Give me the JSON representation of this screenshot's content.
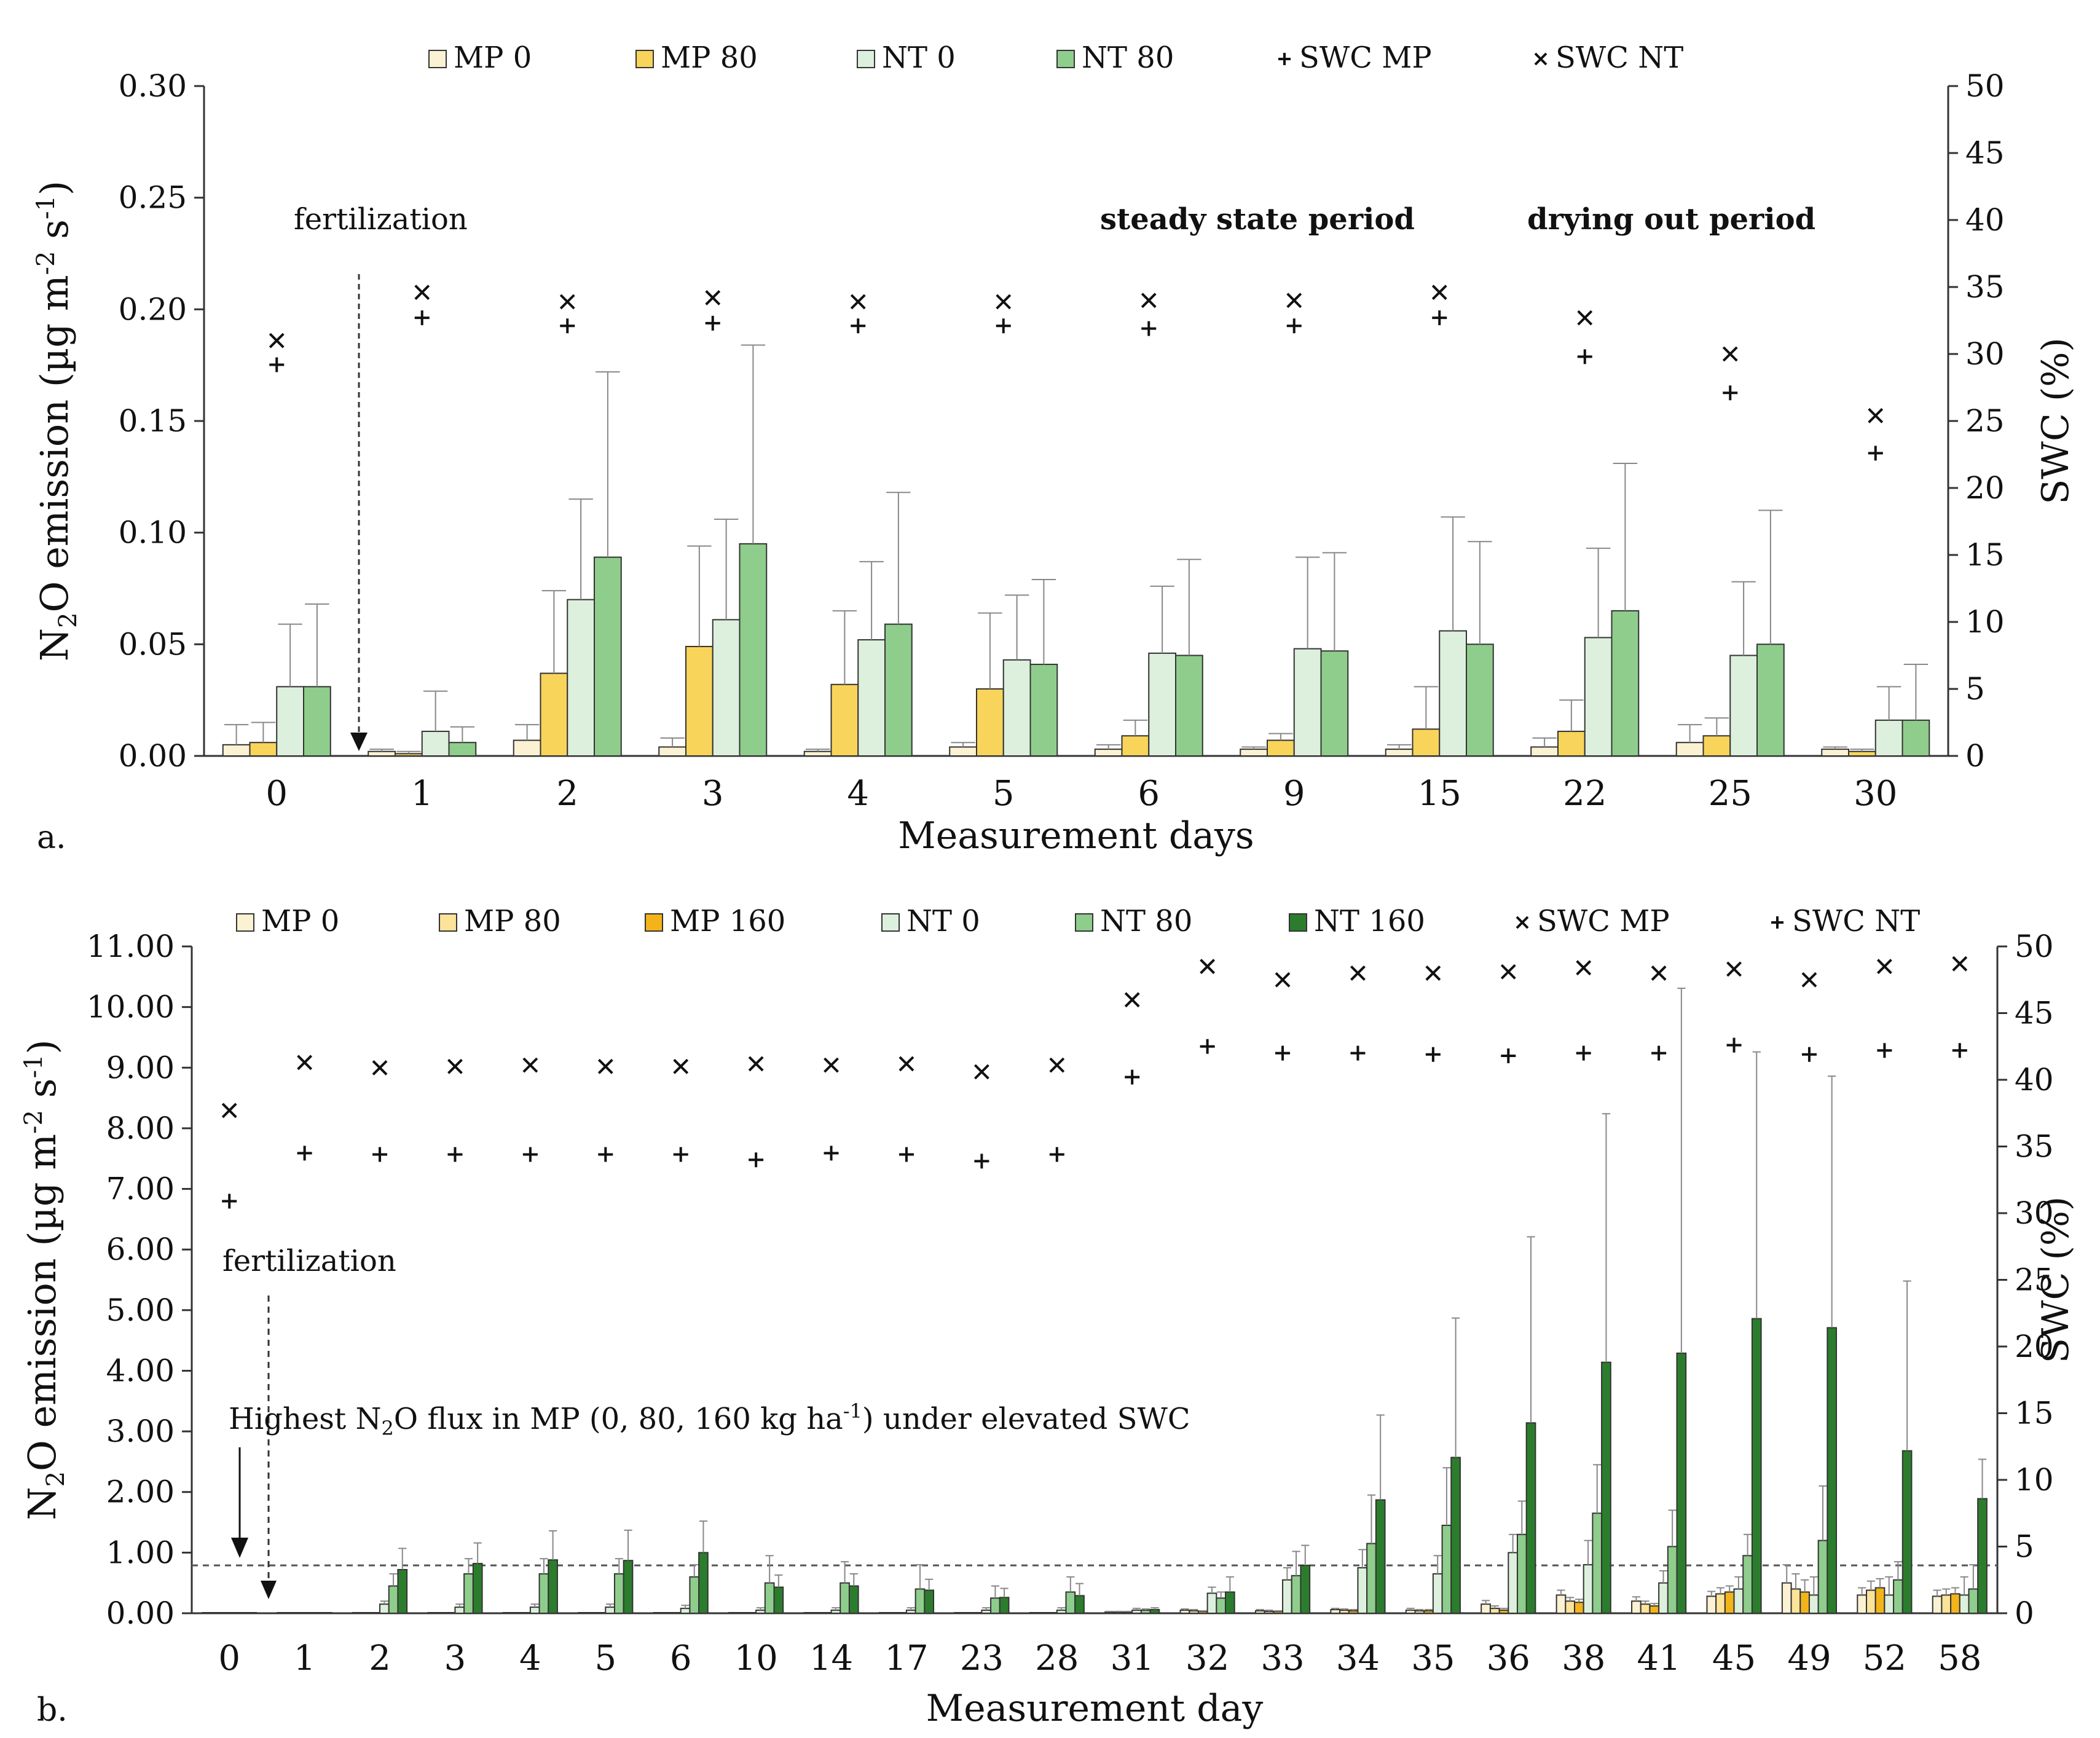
{
  "colors": {
    "MP 0": "#fbf1d3",
    "MP 80": "#f8d45a",
    "MP 80 light": "#fbe39a",
    "MP 160": "#f2b41a",
    "NT 0": "#ddf0dd",
    "NT 80": "#8fcd8c",
    "NT 160": "#2b7d2d",
    "outline": "#333333",
    "error": "#888888"
  },
  "chart_data": [
    {
      "type": "bar",
      "panel_label": "a.",
      "title": "",
      "xlabel": "Measurement days",
      "ylabel": "N2O emission (µg m-2 s-1)",
      "ylabel_parts": {
        "pre": "N",
        "sub": "2",
        "mid": "O emission (µg m",
        "sup1": "-2",
        "mid2": " s",
        "sup2": "-1",
        "post": ")"
      },
      "y2label": "SWC (%)",
      "ylim": [
        0,
        0.3
      ],
      "y2lim": [
        0,
        50
      ],
      "yticks": [
        "0.00",
        "0.05",
        "0.10",
        "0.15",
        "0.20",
        "0.25",
        "0.30"
      ],
      "y2ticks": [
        "0",
        "5",
        "10",
        "15",
        "20",
        "25",
        "30",
        "35",
        "40",
        "45",
        "50"
      ],
      "categories": [
        "0",
        "1",
        "2",
        "3",
        "4",
        "5",
        "6",
        "9",
        "15",
        "22",
        "25",
        "30"
      ],
      "legend": [
        {
          "label": "MP 0",
          "kind": "box",
          "color": "#fbf1d3"
        },
        {
          "label": "MP 80",
          "kind": "box",
          "color": "#f8d45a"
        },
        {
          "label": "NT 0",
          "kind": "box",
          "color": "#ddf0dd"
        },
        {
          "label": "NT 80",
          "kind": "box",
          "color": "#8fcd8c"
        },
        {
          "label": "SWC MP",
          "kind": "plus"
        },
        {
          "label": "SWC NT",
          "kind": "cross"
        }
      ],
      "series": [
        {
          "name": "MP 0",
          "color": "#fbf1d3",
          "values": [
            0.005,
            0.002,
            0.007,
            0.004,
            0.002,
            0.004,
            0.003,
            0.003,
            0.003,
            0.004,
            0.006,
            0.003
          ],
          "errors": [
            0.009,
            0.001,
            0.007,
            0.004,
            0.001,
            0.002,
            0.002,
            0.001,
            0.002,
            0.004,
            0.008,
            0.001
          ]
        },
        {
          "name": "MP 80",
          "color": "#f8d45a",
          "values": [
            0.006,
            0.001,
            0.037,
            0.049,
            0.032,
            0.03,
            0.009,
            0.007,
            0.012,
            0.011,
            0.009,
            0.002
          ],
          "errors": [
            0.009,
            0.001,
            0.037,
            0.045,
            0.033,
            0.034,
            0.007,
            0.003,
            0.019,
            0.014,
            0.008,
            0.001
          ]
        },
        {
          "name": "NT 0",
          "color": "#ddf0dd",
          "values": [
            0.031,
            0.011,
            0.07,
            0.061,
            0.052,
            0.043,
            0.046,
            0.048,
            0.056,
            0.053,
            0.045,
            0.016
          ],
          "errors": [
            0.028,
            0.018,
            0.045,
            0.045,
            0.035,
            0.029,
            0.03,
            0.041,
            0.051,
            0.04,
            0.033,
            0.015
          ]
        },
        {
          "name": "NT 80",
          "color": "#8fcd8c",
          "values": [
            0.031,
            0.006,
            0.089,
            0.095,
            0.059,
            0.041,
            0.045,
            0.047,
            0.05,
            0.065,
            0.05,
            0.016
          ],
          "errors": [
            0.037,
            0.007,
            0.083,
            0.089,
            0.059,
            0.038,
            0.043,
            0.044,
            0.046,
            0.066,
            0.06,
            0.025
          ]
        }
      ],
      "swc_series": [
        {
          "name": "SWC MP",
          "marker": "plus",
          "values": [
            29.2,
            32.7,
            32.1,
            32.3,
            32.1,
            32.1,
            31.9,
            32.1,
            32.7,
            29.8,
            27.1,
            22.6
          ]
        },
        {
          "name": "SWC NT",
          "marker": "cross",
          "values": [
            31.0,
            34.6,
            33.9,
            34.2,
            33.9,
            33.9,
            34.0,
            34.0,
            34.6,
            32.7,
            30.0,
            25.4
          ]
        }
      ],
      "annotations": [
        {
          "text": "fertilization",
          "bold": false,
          "arrow": "solid"
        },
        {
          "text": "steady state period",
          "bold": true
        },
        {
          "text": "drying out period",
          "bold": true
        }
      ]
    },
    {
      "type": "bar",
      "panel_label": "b.",
      "title": "",
      "xlabel": "Measurement day",
      "ylabel": "N2O emission (µg m-2 s-1)",
      "ylabel_parts": {
        "pre": "N",
        "sub": "2",
        "mid": "O emission (µg m",
        "sup1": "-2",
        "mid2": " s",
        "sup2": "-1",
        "post": ")"
      },
      "y2label": "SWC (%)",
      "ylim": [
        0,
        11
      ],
      "y2lim": [
        0,
        50
      ],
      "yticks": [
        "0.00",
        "1.00",
        "2.00",
        "3.00",
        "4.00",
        "5.00",
        "6.00",
        "7.00",
        "8.00",
        "9.00",
        "10.00",
        "11.00"
      ],
      "y2ticks": [
        "0",
        "5",
        "10",
        "15",
        "20",
        "25",
        "30",
        "35",
        "40",
        "45",
        "50"
      ],
      "categories": [
        "0",
        "1",
        "2",
        "3",
        "4",
        "5",
        "6",
        "10",
        "14",
        "17",
        "23",
        "28",
        "31",
        "32",
        "33",
        "34",
        "35",
        "36",
        "38",
        "41",
        "45",
        "49",
        "52",
        "58"
      ],
      "legend": [
        {
          "label": "MP 0",
          "kind": "box",
          "color": "#fbf1d3"
        },
        {
          "label": "MP 80",
          "kind": "box",
          "color": "#fbe39a"
        },
        {
          "label": "MP 160",
          "kind": "box",
          "color": "#f2b41a"
        },
        {
          "label": "NT 0",
          "kind": "box",
          "color": "#ddf0dd"
        },
        {
          "label": "NT 80",
          "kind": "box",
          "color": "#8fcd8c"
        },
        {
          "label": "NT 160",
          "kind": "box",
          "color": "#2b7d2d"
        },
        {
          "label": "SWC MP",
          "kind": "cross"
        },
        {
          "label": "SWC NT",
          "kind": "plus"
        }
      ],
      "series": [
        {
          "name": "MP 0",
          "color": "#fbf1d3",
          "values": [
            0.01,
            0.01,
            0.01,
            0.01,
            0.01,
            0.01,
            0.01,
            0.01,
            0.01,
            0.01,
            0.01,
            0.01,
            0.02,
            0.05,
            0.04,
            0.06,
            0.05,
            0.15,
            0.3,
            0.2,
            0.28,
            0.5,
            0.3,
            0.28
          ],
          "errors": [
            0,
            0,
            0,
            0,
            0,
            0,
            0,
            0,
            0,
            0,
            0,
            0,
            0.01,
            0.02,
            0.02,
            0.02,
            0.03,
            0.06,
            0.08,
            0.07,
            0.08,
            0.3,
            0.12,
            0.1
          ]
        },
        {
          "name": "MP 80",
          "color": "#fbe39a",
          "values": [
            0.01,
            0.01,
            0.01,
            0.01,
            0.01,
            0.01,
            0.01,
            0.01,
            0.01,
            0.01,
            0.01,
            0.01,
            0.02,
            0.04,
            0.03,
            0.05,
            0.04,
            0.08,
            0.2,
            0.15,
            0.32,
            0.4,
            0.38,
            0.3
          ],
          "errors": [
            0,
            0,
            0,
            0,
            0,
            0,
            0,
            0,
            0,
            0,
            0,
            0,
            0.01,
            0.02,
            0.02,
            0.02,
            0.02,
            0.04,
            0.06,
            0.05,
            0.1,
            0.25,
            0.15,
            0.1
          ]
        },
        {
          "name": "MP 160",
          "color": "#f2b41a",
          "values": [
            0.01,
            0.01,
            0.01,
            0.01,
            0.01,
            0.01,
            0.01,
            0.01,
            0.01,
            0.01,
            0.01,
            0.01,
            0.02,
            0.03,
            0.03,
            0.04,
            0.04,
            0.05,
            0.18,
            0.12,
            0.35,
            0.35,
            0.42,
            0.32
          ],
          "errors": [
            0,
            0,
            0,
            0,
            0,
            0,
            0,
            0,
            0,
            0,
            0,
            0,
            0.01,
            0.01,
            0.01,
            0.02,
            0.02,
            0.03,
            0.05,
            0.04,
            0.1,
            0.2,
            0.15,
            0.1
          ]
        },
        {
          "name": "NT 0",
          "color": "#ddf0dd",
          "values": [
            0.01,
            0.01,
            0.15,
            0.1,
            0.1,
            0.1,
            0.08,
            0.05,
            0.05,
            0.05,
            0.05,
            0.05,
            0.05,
            0.33,
            0.55,
            0.75,
            0.65,
            1.0,
            0.8,
            0.5,
            0.4,
            0.3,
            0.3,
            0.3
          ],
          "errors": [
            0,
            0,
            0.05,
            0.05,
            0.05,
            0.05,
            0.05,
            0.04,
            0.04,
            0.04,
            0.04,
            0.04,
            0.03,
            0.1,
            0.2,
            0.3,
            0.3,
            0.3,
            0.4,
            0.2,
            0.2,
            0.3,
            0.3,
            0.3
          ]
        },
        {
          "name": "NT 80",
          "color": "#8fcd8c",
          "values": [
            0.01,
            0.01,
            0.45,
            0.65,
            0.65,
            0.65,
            0.6,
            0.5,
            0.5,
            0.4,
            0.25,
            0.35,
            0.05,
            0.25,
            0.62,
            1.15,
            1.45,
            1.3,
            1.65,
            1.1,
            0.95,
            1.2,
            0.55,
            0.4
          ],
          "errors": [
            0,
            0,
            0.2,
            0.25,
            0.25,
            0.25,
            0.2,
            0.45,
            0.35,
            0.4,
            0.2,
            0.25,
            0.02,
            0.1,
            0.4,
            0.8,
            0.95,
            0.55,
            0.8,
            0.6,
            0.35,
            0.9,
            0.3,
            0.4
          ]
        },
        {
          "name": "NT 160",
          "color": "#2b7d2d",
          "values": [
            0.01,
            0.01,
            0.72,
            0.82,
            0.88,
            0.87,
            1.0,
            0.43,
            0.45,
            0.38,
            0.26,
            0.29,
            0.06,
            0.35,
            0.79,
            1.87,
            2.57,
            3.14,
            4.14,
            4.29,
            4.86,
            4.71,
            2.68,
            1.89
          ],
          "errors": [
            0,
            0,
            0.35,
            0.34,
            0.48,
            0.5,
            0.52,
            0.2,
            0.2,
            0.18,
            0.15,
            0.2,
            0.03,
            0.25,
            0.33,
            1.4,
            2.3,
            3.07,
            4.1,
            6.02,
            4.4,
            4.15,
            2.8,
            0.65
          ]
        }
      ],
      "swc_series": [
        {
          "name": "SWC MP",
          "marker": "cross",
          "values": [
            37.7,
            41.3,
            40.9,
            41.0,
            41.1,
            41.0,
            41.0,
            41.2,
            41.1,
            41.2,
            40.6,
            41.1,
            46.0,
            48.5,
            47.5,
            48.0,
            48.0,
            48.1,
            48.4,
            48.0,
            48.3,
            47.5,
            48.5,
            48.7
          ]
        },
        {
          "name": "SWC NT",
          "marker": "plus",
          "values": [
            30.9,
            34.5,
            34.4,
            34.4,
            34.4,
            34.4,
            34.4,
            34.0,
            34.5,
            34.4,
            33.9,
            34.4,
            40.2,
            42.5,
            42.0,
            42.0,
            41.9,
            41.8,
            42.0,
            42.0,
            42.6,
            41.9,
            42.2,
            42.2
          ]
        }
      ],
      "reference_line": {
        "value": 0.79,
        "style": "dashed"
      },
      "annotations": [
        {
          "text": "fertilization",
          "bold": false,
          "arrow": "dashed"
        },
        {
          "text": "Highest N2O flux in MP (0, 80, 160 kg ha-1) under elevated SWC",
          "bold": false,
          "arrow": "solid",
          "parts": {
            "pre": "Highest N",
            "sub": "2",
            "mid": "O flux in MP (0, 80, 160 kg ha",
            "sup": "-1",
            "post": ") under elevated SWC"
          }
        }
      ]
    }
  ]
}
